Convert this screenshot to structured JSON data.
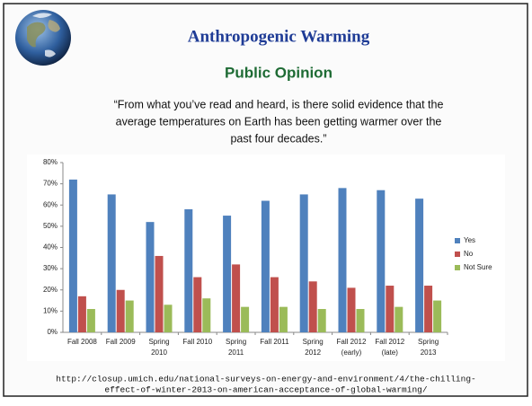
{
  "header": {
    "title": "Anthropogenic Warming",
    "subtitle": "Public Opinion",
    "question": [
      "“From what you’ve read and heard, is there solid evidence that the",
      "average temperatures on Earth has been getting warmer over the",
      "past four decades.”"
    ]
  },
  "chart_data": {
    "type": "bar",
    "categories": [
      [
        "Fall 2008"
      ],
      [
        "Fall 2009"
      ],
      [
        "Spring",
        "2010"
      ],
      [
        "Fall 2010"
      ],
      [
        "Spring",
        "2011"
      ],
      [
        "Fall 2011"
      ],
      [
        "Spring",
        "2012"
      ],
      [
        "Fall 2012",
        "(early)"
      ],
      [
        "Fall 2012",
        "(late)"
      ],
      [
        "Spring",
        "2013"
      ]
    ],
    "series": [
      {
        "name": "Yes",
        "color": "#4f81bd",
        "values": [
          72,
          65,
          52,
          58,
          55,
          62,
          65,
          68,
          67,
          63
        ]
      },
      {
        "name": "No",
        "color": "#c0504d",
        "values": [
          17,
          20,
          36,
          26,
          32,
          26,
          24,
          21,
          22,
          22
        ]
      },
      {
        "name": "Not Sure",
        "color": "#9bbb59",
        "values": [
          11,
          15,
          13,
          16,
          12,
          12,
          11,
          11,
          12,
          15
        ]
      }
    ],
    "ylim": [
      0,
      80
    ],
    "yticks": [
      {
        "value": 0,
        "label": "0%"
      },
      {
        "value": 10,
        "label": "10%"
      },
      {
        "value": 20,
        "label": "20%"
      },
      {
        "value": 30,
        "label": "30%"
      },
      {
        "value": 40,
        "label": "40%"
      },
      {
        "value": 50,
        "label": "50%"
      },
      {
        "value": 60,
        "label": "60%"
      },
      {
        "value": 70,
        "label": "70%"
      },
      {
        "value": 80,
        "label": "80%"
      }
    ],
    "grid": false,
    "legend": "right"
  },
  "footer": {
    "source": [
      "http://closup.umich.edu/national-surveys-on-energy-and-environment/4/the-chilling-",
      "effect-of-winter-2013-on-american-acceptance-of-global-warming/"
    ]
  }
}
